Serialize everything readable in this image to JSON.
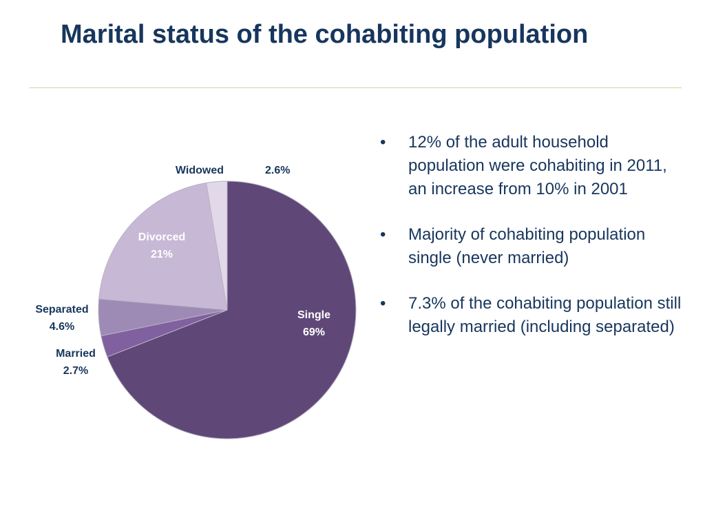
{
  "slide": {
    "title": "Marital status of the cohabiting population",
    "bullet_marker": "•",
    "bullets": [
      "12% of the adult household population were cohabiting in 2011, an increase from 10% in 2001",
      "Majority of cohabiting population single (never married)",
      "7.3% of the cohabiting population still legally married (including separated)"
    ]
  },
  "colors": {
    "title": "#17365d",
    "rule": "#c9d49a",
    "label_dark": "#17365d",
    "label_light": "#ffffff"
  },
  "chart_data": {
    "type": "pie",
    "start_angle_deg": 0,
    "direction": "clockwise",
    "slices": [
      {
        "category": "Single",
        "value": 69,
        "label": "69%",
        "color": "#5f4878"
      },
      {
        "category": "Married",
        "value": 2.7,
        "label": "2.7%",
        "color": "#80609e"
      },
      {
        "category": "Separated",
        "value": 4.6,
        "label": "4.6%",
        "color": "#9d8bb5"
      },
      {
        "category": "Divorced",
        "value": 21,
        "label": "21%",
        "color": "#c7b9d6"
      },
      {
        "category": "Widowed",
        "value": 2.6,
        "label": "2.6%",
        "color": "#e1d9ea"
      }
    ],
    "label_style": [
      {
        "placement": "inside",
        "text_color": "#ffffff"
      },
      {
        "placement": "outside",
        "text_color": "#17365d"
      },
      {
        "placement": "outside",
        "text_color": "#17365d"
      },
      {
        "placement": "inside",
        "text_color": "#ffffff"
      },
      {
        "placement": "outside-inline",
        "text_color": "#17365d"
      }
    ]
  }
}
